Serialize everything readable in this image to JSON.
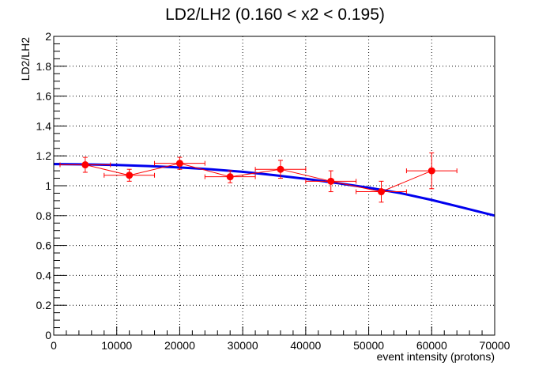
{
  "chart_data": {
    "type": "scatter",
    "title": "LD2/LH2 (0.160 < x2 < 0.195)",
    "xlabel": "event intensity (protons)",
    "ylabel": "LD2/LH2",
    "xlim": [
      0,
      70000
    ],
    "ylim": [
      0,
      2
    ],
    "grid": true,
    "x_ticks": [
      "0",
      "10000",
      "20000",
      "30000",
      "40000",
      "50000",
      "60000",
      "70000"
    ],
    "y_ticks": [
      "0",
      "0.2",
      "0.4",
      "0.6",
      "0.8",
      "1",
      "1.2",
      "1.4",
      "1.6",
      "1.8",
      "2"
    ],
    "series": [
      {
        "kind": "points_with_errors",
        "color": "#ff0000",
        "points": [
          {
            "x": 5000,
            "y": 1.14,
            "xerr": 4000,
            "yerr": 0.05
          },
          {
            "x": 12000,
            "y": 1.07,
            "xerr": 4000,
            "yerr": 0.04
          },
          {
            "x": 20000,
            "y": 1.15,
            "xerr": 4000,
            "yerr": 0.04
          },
          {
            "x": 28000,
            "y": 1.06,
            "xerr": 4000,
            "yerr": 0.04
          },
          {
            "x": 36000,
            "y": 1.11,
            "xerr": 4000,
            "yerr": 0.06
          },
          {
            "x": 44000,
            "y": 1.03,
            "xerr": 4000,
            "yerr": 0.07
          },
          {
            "x": 52000,
            "y": 0.96,
            "xerr": 4000,
            "yerr": 0.07
          },
          {
            "x": 60000,
            "y": 1.1,
            "xerr": 4000,
            "yerr": 0.12
          }
        ]
      },
      {
        "kind": "fit_curve",
        "color": "#0000ee",
        "x": [
          0,
          5000,
          10000,
          15000,
          20000,
          25000,
          30000,
          35000,
          40000,
          45000,
          50000,
          55000,
          60000,
          65000,
          70000
        ],
        "y": [
          1.145,
          1.143,
          1.139,
          1.132,
          1.122,
          1.11,
          1.093,
          1.071,
          1.046,
          1.018,
          0.987,
          0.951,
          0.905,
          0.853,
          0.8
        ]
      }
    ]
  }
}
